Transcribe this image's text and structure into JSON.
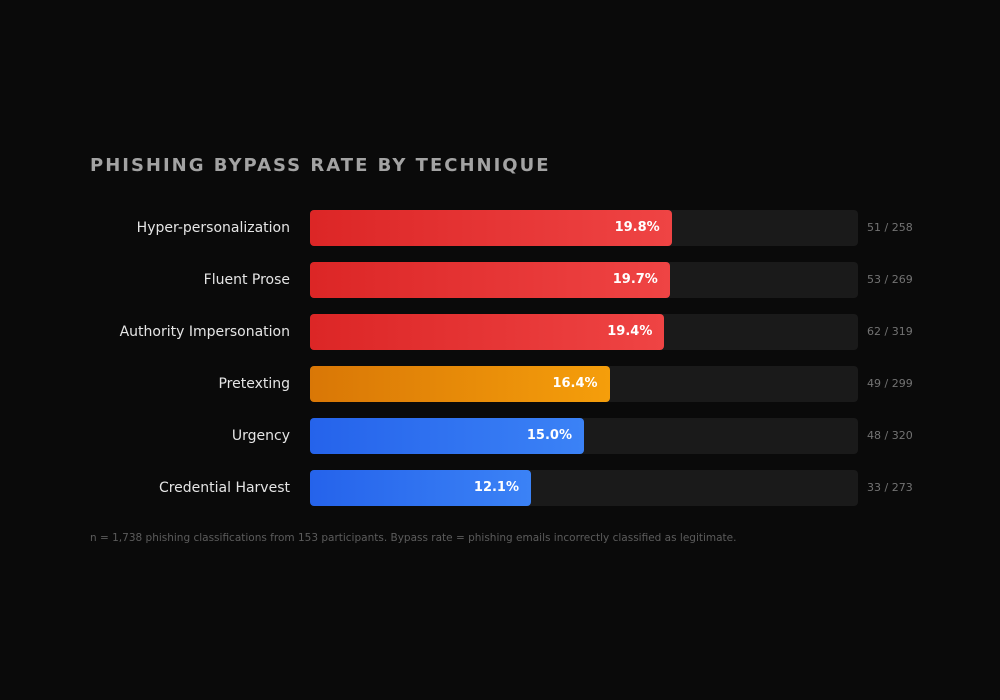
{
  "chart_data": {
    "type": "bar",
    "orientation": "horizontal",
    "title": "PHISHING BYPASS RATE BY TECHNIQUE",
    "xlim": [
      0,
      30
    ],
    "grid": false,
    "categories": [
      "Hyper-personalization",
      "Fluent Prose",
      "Authority Impersonation",
      "Pretexting",
      "Urgency",
      "Credential Harvest"
    ],
    "values": [
      19.8,
      19.7,
      19.4,
      16.4,
      15.0,
      12.1
    ],
    "value_labels": [
      "19.8%",
      "19.7%",
      "19.4%",
      "16.4%",
      "15.0%",
      "12.1%"
    ],
    "counts": [
      "51 / 258",
      "53 / 269",
      "62 / 319",
      "49 / 299",
      "48 / 320",
      "33 / 273"
    ],
    "bar_colors": [
      [
        "#dc2626",
        "#ef4444"
      ],
      [
        "#dc2626",
        "#ef4444"
      ],
      [
        "#dc2626",
        "#ef4444"
      ],
      [
        "#d97706",
        "#f59e0b"
      ],
      [
        "#2563eb",
        "#3b82f6"
      ],
      [
        "#2563eb",
        "#3b82f6"
      ]
    ],
    "footnote": "n = 1,738 phishing classifications from 153 participants. Bypass rate = phishing emails incorrectly classified as legitimate."
  }
}
